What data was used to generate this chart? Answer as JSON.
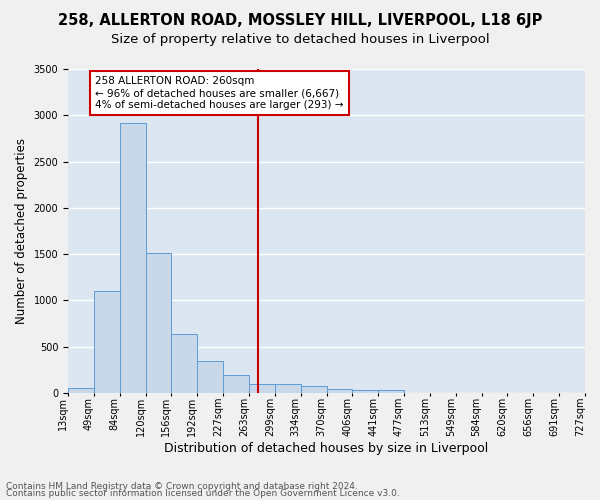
{
  "title": "258, ALLERTON ROAD, MOSSLEY HILL, LIVERPOOL, L18 6JP",
  "subtitle": "Size of property relative to detached houses in Liverpool",
  "xlabel": "Distribution of detached houses by size in Liverpool",
  "ylabel": "Number of detached properties",
  "footnote1": "Contains HM Land Registry data © Crown copyright and database right 2024.",
  "footnote2": "Contains public sector information licensed under the Open Government Licence v3.0.",
  "bin_labels": [
    "13sqm",
    "49sqm",
    "84sqm",
    "120sqm",
    "156sqm",
    "192sqm",
    "227sqm",
    "263sqm",
    "299sqm",
    "334sqm",
    "370sqm",
    "406sqm",
    "441sqm",
    "477sqm",
    "513sqm",
    "549sqm",
    "584sqm",
    "620sqm",
    "656sqm",
    "691sqm",
    "727sqm"
  ],
  "bar_heights": [
    50,
    1100,
    2920,
    1510,
    640,
    340,
    195,
    100,
    90,
    70,
    40,
    30,
    35,
    0,
    0,
    0,
    0,
    0,
    0,
    0
  ],
  "bar_color": "#c8d8e8",
  "bar_edge_color": "#5b9bd5",
  "vline_x": 7.35,
  "vline_color": "#cc0000",
  "annotation_line1": "258 ALLERTON ROAD: 260sqm",
  "annotation_line2": "← 96% of detached houses are smaller (6,667)",
  "annotation_line3": "4% of semi-detached houses are larger (293) →",
  "annotation_box_color": "#ffffff",
  "annotation_box_edge_color": "#cc0000",
  "ylim": [
    0,
    3500
  ],
  "yticks": [
    0,
    500,
    1000,
    1500,
    2000,
    2500,
    3000,
    3500
  ],
  "background_color": "#dce6f0",
  "grid_color": "#ffffff",
  "title_fontsize": 10.5,
  "subtitle_fontsize": 9.5,
  "xlabel_fontsize": 9,
  "ylabel_fontsize": 8.5,
  "tick_fontsize": 7,
  "annotation_fontsize": 7.5,
  "footnote_fontsize": 6.5
}
